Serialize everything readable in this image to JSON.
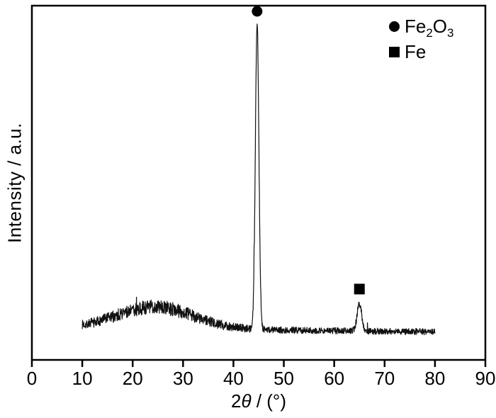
{
  "chart_data": {
    "type": "line",
    "title": "",
    "xlabel": "2θ / (°)",
    "xlabel_parts": {
      "prefix": "2",
      "italic": "θ",
      "suffix": " / (°)"
    },
    "ylabel": "Intensity / a.u.",
    "xlim": [
      0,
      90
    ],
    "x_ticks": [
      0,
      10,
      20,
      30,
      40,
      50,
      60,
      70,
      80,
      90
    ],
    "data_x_range": [
      10,
      80
    ],
    "grid": false,
    "legend_position": "top-right",
    "trace": {
      "baseline_rel": 0.09,
      "tilt_per_deg": -0.00015,
      "broad_hump": {
        "center": 24.5,
        "sigma": 7.5,
        "height_rel": 0.062,
        "note": "broad amorphous hump"
      },
      "noise": {
        "base": 0.009,
        "hump_extra": 0.011,
        "hump_sigma": 10,
        "spike_prob": 0.004,
        "spike_max": 0.035,
        "seed": 7
      },
      "sample_step_deg": 0.05
    },
    "peaks": [
      {
        "two_theta": 44.7,
        "sigma_deg": 0.35,
        "height_rel": 0.862,
        "phase": "Fe2O3",
        "marker": "circle"
      },
      {
        "two_theta": 65.0,
        "sigma_deg": 0.45,
        "height_rel": 0.078,
        "phase": "Fe",
        "marker": "square"
      }
    ],
    "legend": {
      "items": [
        {
          "marker": "circle",
          "formula": {
            "p1": "Fe",
            "s1": "2",
            "p2": "O",
            "s2": "3"
          }
        },
        {
          "marker": "square",
          "formula": {
            "p1": "Fe"
          }
        }
      ]
    },
    "colors": {
      "line": "#111111",
      "axis": "#000000",
      "marker": "#000000",
      "background": "#ffffff"
    }
  }
}
